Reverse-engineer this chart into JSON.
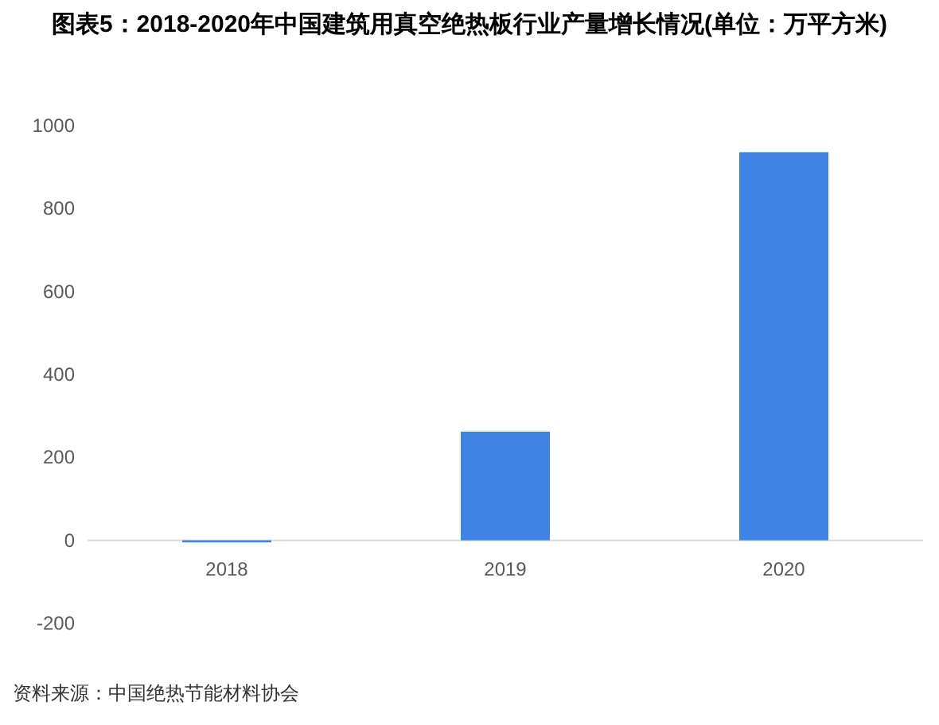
{
  "chart_data": {
    "type": "bar",
    "title": "图表5：2018-2020年中国建筑用真空绝热板行业产量增长情况(单位：万平方米)",
    "categories": [
      "2018",
      "2019",
      "2020"
    ],
    "values": [
      -5,
      262,
      936
    ],
    "color": "#3f84e5",
    "ylim": [
      -200,
      1000
    ],
    "yticks": [
      -200,
      0,
      200,
      400,
      600,
      800,
      1000
    ],
    "annotations": [
      "资料来源：中国绝热节能材料协会"
    ]
  }
}
